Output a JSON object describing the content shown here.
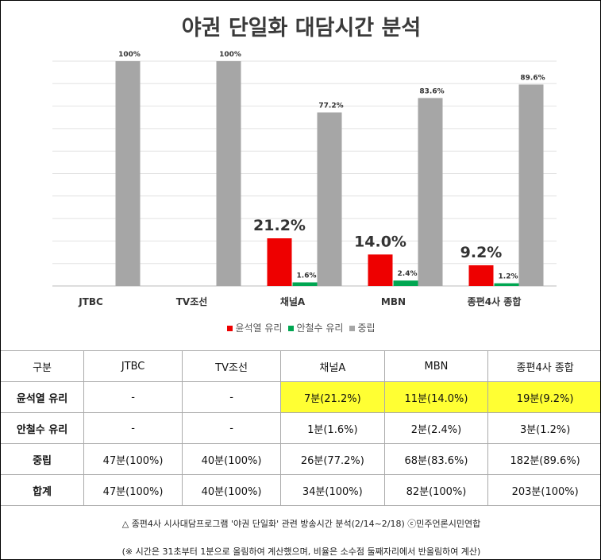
{
  "chart_data": {
    "type": "bar",
    "title": "야권 단일화 대담시간 분석",
    "categories": [
      "JTBC",
      "TV조선",
      "채널A",
      "MBN",
      "종편4사 종합"
    ],
    "ylim": [
      0,
      100
    ],
    "grid": true,
    "legend_placement": "bottom",
    "series": [
      {
        "name": "윤석열 유리",
        "color": "#ee0000",
        "values": [
          null,
          null,
          21.2,
          14.0,
          9.2
        ],
        "labels": [
          "",
          "",
          "21.2%",
          "14.0%",
          "9.2%"
        ]
      },
      {
        "name": "안철수 유리",
        "color": "#00a651",
        "values": [
          null,
          null,
          1.6,
          2.4,
          1.2
        ],
        "labels": [
          "",
          "",
          "1.6%",
          "2.4%",
          "1.2%"
        ]
      },
      {
        "name": "중립",
        "color": "#a6a6a6",
        "values": [
          100,
          100,
          77.2,
          83.6,
          89.6
        ],
        "labels": [
          "100%",
          "100%",
          "77.2%",
          "83.6%",
          "89.6%"
        ]
      }
    ]
  },
  "table": {
    "header": [
      "구분",
      "JTBC",
      "TV조선",
      "채널A",
      "MBN",
      "종편4사 종합"
    ],
    "rows": [
      {
        "cells": [
          "윤석열 유리",
          "-",
          "-",
          "7분(21.2%)",
          "11분(14.0%)",
          "19분(9.2%)"
        ],
        "highlight": [
          3,
          4,
          5
        ]
      },
      {
        "cells": [
          "안철수 유리",
          "-",
          "-",
          "1분(1.6%)",
          "2분(2.4%)",
          "3분(1.2%)"
        ],
        "highlight": []
      },
      {
        "cells": [
          "중립",
          "47분(100%)",
          "40분(100%)",
          "26분(77.2%)",
          "68분(83.6%)",
          "182분(89.6%)"
        ],
        "highlight": []
      },
      {
        "cells": [
          "합계",
          "47분(100%)",
          "40분(100%)",
          "34분(100%)",
          "82분(100%)",
          "203분(100%)"
        ],
        "highlight": []
      }
    ],
    "highlight_color": "#ffff33"
  },
  "footer": {
    "source": "△ 종편4사 시사대담프로그램 '야권 단일화' 관련 방송시간 분석(2/14~2/18) ⓒ민주언론시민연합",
    "note": "(※ 시간은 31초부터 1분으로 올림하여 계산했으며, 비율은 소수점 둘째자리에서 반올림하여 계산)"
  }
}
